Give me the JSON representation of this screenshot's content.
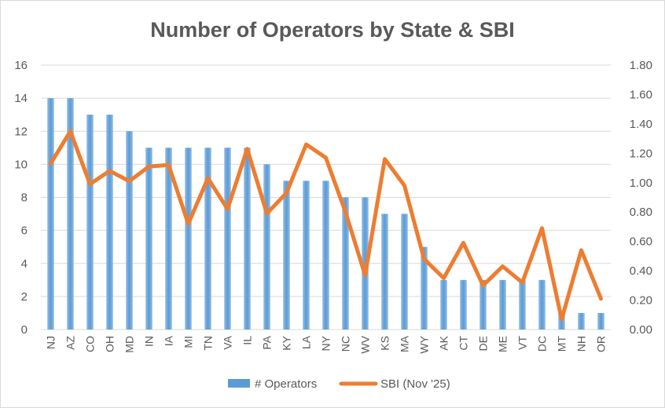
{
  "chart_data": {
    "type": "bar",
    "title": "Number of Operators by State & SBI",
    "categories": [
      "NJ",
      "AZ",
      "CO",
      "OH",
      "MD",
      "IN",
      "IA",
      "MI",
      "TN",
      "VA",
      "IL",
      "PA",
      "KY",
      "LA",
      "NY",
      "NC",
      "WV",
      "KS",
      "MA",
      "WY",
      "AK",
      "CT",
      "DE",
      "ME",
      "VT",
      "DC",
      "MT",
      "NH",
      "OR"
    ],
    "series": [
      {
        "name": "# Operators",
        "type": "bar",
        "axis": "left",
        "color": "#5b9bd5",
        "values": [
          14,
          14,
          13,
          13,
          12,
          11,
          11,
          11,
          11,
          11,
          11,
          10,
          9,
          9,
          9,
          8,
          8,
          7,
          7,
          5,
          3,
          3,
          3,
          3,
          3,
          3,
          1,
          1,
          1
        ]
      },
      {
        "name": "SBI (Nov '25)",
        "type": "line",
        "axis": "right",
        "color": "#ed7d31",
        "values": [
          1.13,
          1.35,
          0.99,
          1.08,
          1.01,
          1.11,
          1.12,
          0.72,
          1.03,
          0.82,
          1.23,
          0.79,
          0.93,
          1.26,
          1.17,
          0.8,
          0.37,
          1.16,
          0.98,
          0.48,
          0.35,
          0.59,
          0.3,
          0.43,
          0.32,
          0.69,
          0.07,
          0.54,
          0.21
        ]
      }
    ],
    "y_left": {
      "min": 0,
      "max": 16,
      "step": 2,
      "ticks": [
        "0",
        "2",
        "4",
        "6",
        "8",
        "10",
        "12",
        "14",
        "16"
      ]
    },
    "y_right": {
      "min": 0,
      "max": 1.8,
      "step": 0.2,
      "ticks": [
        "0.00",
        "0.20",
        "0.40",
        "0.60",
        "0.80",
        "1.00",
        "1.20",
        "1.40",
        "1.60",
        "1.80"
      ]
    },
    "grid": true,
    "legend_position": "bottom"
  }
}
